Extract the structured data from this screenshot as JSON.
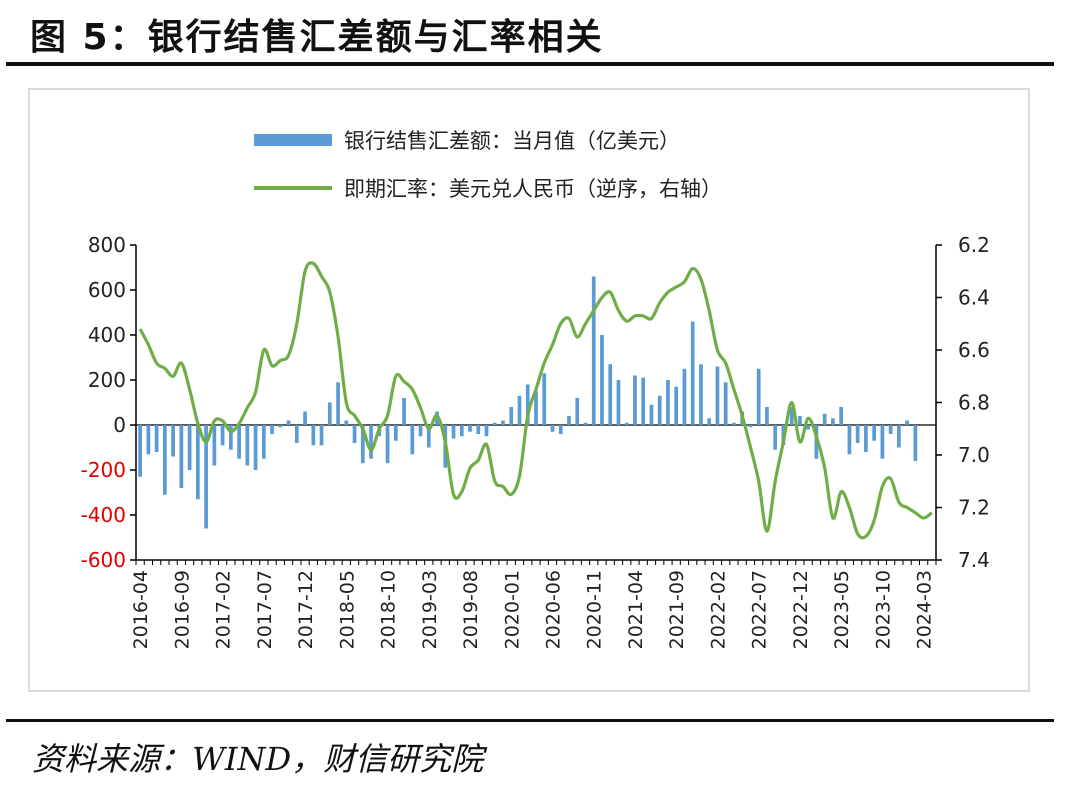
{
  "figure": {
    "title": "图 5：银行结售汇差额与汇率相关",
    "source": "资料来源：WIND，财信研究院"
  },
  "colors": {
    "bar": "#5b9bd5",
    "line": "#70ad47",
    "negative_tick": "#e00000",
    "axis": "#000000"
  },
  "chart_data": {
    "type": "bar+line",
    "legend": [
      "银行结售汇差额：当月值（亿美元）",
      "即期汇率：美元兑人民币（逆序，右轴）"
    ],
    "legend_position": "top-center",
    "grid": false,
    "x": [
      "2016-04",
      "2016-05",
      "2016-06",
      "2016-07",
      "2016-08",
      "2016-09",
      "2016-10",
      "2016-11",
      "2016-12",
      "2017-01",
      "2017-02",
      "2017-03",
      "2017-04",
      "2017-05",
      "2017-06",
      "2017-07",
      "2017-08",
      "2017-09",
      "2017-10",
      "2017-11",
      "2017-12",
      "2018-01",
      "2018-02",
      "2018-03",
      "2018-04",
      "2018-05",
      "2018-06",
      "2018-07",
      "2018-08",
      "2018-09",
      "2018-10",
      "2018-11",
      "2018-12",
      "2019-01",
      "2019-02",
      "2019-03",
      "2019-04",
      "2019-05",
      "2019-06",
      "2019-07",
      "2019-08",
      "2019-09",
      "2019-10",
      "2019-11",
      "2019-12",
      "2020-01",
      "2020-02",
      "2020-03",
      "2020-04",
      "2020-05",
      "2020-06",
      "2020-07",
      "2020-08",
      "2020-09",
      "2020-10",
      "2020-11",
      "2020-12",
      "2021-01",
      "2021-02",
      "2021-03",
      "2021-04",
      "2021-05",
      "2021-06",
      "2021-07",
      "2021-08",
      "2021-09",
      "2021-10",
      "2021-11",
      "2021-12",
      "2022-01",
      "2022-02",
      "2022-03",
      "2022-04",
      "2022-05",
      "2022-06",
      "2022-07",
      "2022-08",
      "2022-09",
      "2022-10",
      "2022-11",
      "2022-12",
      "2023-01",
      "2023-02",
      "2023-03",
      "2023-04",
      "2023-05",
      "2023-06",
      "2023-07",
      "2023-08",
      "2023-09",
      "2023-10",
      "2023-11",
      "2023-12",
      "2024-01",
      "2024-02",
      "2024-03",
      "2024-04"
    ],
    "x_tick_labels": [
      "2016-04",
      "2016-09",
      "2017-02",
      "2017-07",
      "2017-12",
      "2018-05",
      "2018-10",
      "2019-03",
      "2019-08",
      "2020-01",
      "2020-06",
      "2020-11",
      "2021-04",
      "2021-09",
      "2022-02",
      "2022-07",
      "2022-12",
      "2023-05",
      "2023-10",
      "2024-03"
    ],
    "left_axis": {
      "ylim": [
        -600,
        800
      ],
      "ticks": [
        800,
        600,
        400,
        200,
        0,
        -200,
        -400,
        -600
      ],
      "tick_labels": [
        "800",
        "600",
        "400",
        "200",
        "0",
        "-200",
        "-400",
        "-600"
      ]
    },
    "right_axis": {
      "ylim": [
        6.2,
        7.4
      ],
      "reversed": true,
      "ticks": [
        6.2,
        6.4,
        6.6,
        6.8,
        7.0,
        7.2,
        7.4
      ],
      "tick_labels": [
        "6.2",
        "6.4",
        "6.6",
        "6.8",
        "7.0",
        "7.2",
        "7.4"
      ]
    },
    "series": [
      {
        "name": "银行结售汇差额：当月值（亿美元）",
        "type": "bar",
        "axis": "left",
        "values": [
          -230,
          -130,
          -120,
          -310,
          -140,
          -280,
          -200,
          -330,
          -460,
          -180,
          -90,
          -110,
          -150,
          -180,
          -200,
          -150,
          -40,
          -10,
          20,
          -80,
          60,
          -90,
          -90,
          100,
          190,
          20,
          -80,
          -170,
          -150,
          -50,
          -170,
          -70,
          120,
          -130,
          -50,
          -100,
          60,
          -190,
          -60,
          -50,
          -30,
          -40,
          -50,
          10,
          20,
          80,
          130,
          180,
          150,
          230,
          -30,
          -40,
          40,
          120,
          10,
          660,
          400,
          270,
          200,
          10,
          220,
          210,
          90,
          130,
          200,
          170,
          250,
          460,
          270,
          30,
          260,
          190,
          10,
          60,
          -10,
          250,
          80,
          -110,
          -90,
          80,
          40,
          -20,
          -150,
          50,
          30,
          80,
          -130,
          -80,
          -120,
          -70,
          -150,
          -40,
          -100,
          20,
          -160,
          0,
          0
        ]
      },
      {
        "name": "即期汇率：美元兑人民币（逆序，右轴）",
        "type": "line",
        "axis": "right",
        "values": [
          6.52,
          6.58,
          6.65,
          6.67,
          6.7,
          6.65,
          6.75,
          6.88,
          6.95,
          6.87,
          6.87,
          6.91,
          6.88,
          6.82,
          6.76,
          6.6,
          6.66,
          6.64,
          6.62,
          6.5,
          6.3,
          6.27,
          6.32,
          6.38,
          6.55,
          6.8,
          6.85,
          6.9,
          6.98,
          6.9,
          6.85,
          6.7,
          6.72,
          6.75,
          6.82,
          6.9,
          6.85,
          6.95,
          7.15,
          7.14,
          7.05,
          7.02,
          6.96,
          7.1,
          7.12,
          7.15,
          7.08,
          6.85,
          6.75,
          6.65,
          6.58,
          6.5,
          6.48,
          6.55,
          6.5,
          6.45,
          6.4,
          6.38,
          6.45,
          6.49,
          6.47,
          6.47,
          6.48,
          6.42,
          6.38,
          6.36,
          6.34,
          6.29,
          6.33,
          6.45,
          6.6,
          6.65,
          6.75,
          6.85,
          6.97,
          7.1,
          7.29,
          7.1,
          6.95,
          6.8,
          6.95,
          6.86,
          6.93,
          7.05,
          7.24,
          7.14,
          7.2,
          7.3,
          7.31,
          7.25,
          7.12,
          7.09,
          7.18,
          7.2,
          7.22,
          7.24,
          7.22
        ]
      }
    ]
  }
}
